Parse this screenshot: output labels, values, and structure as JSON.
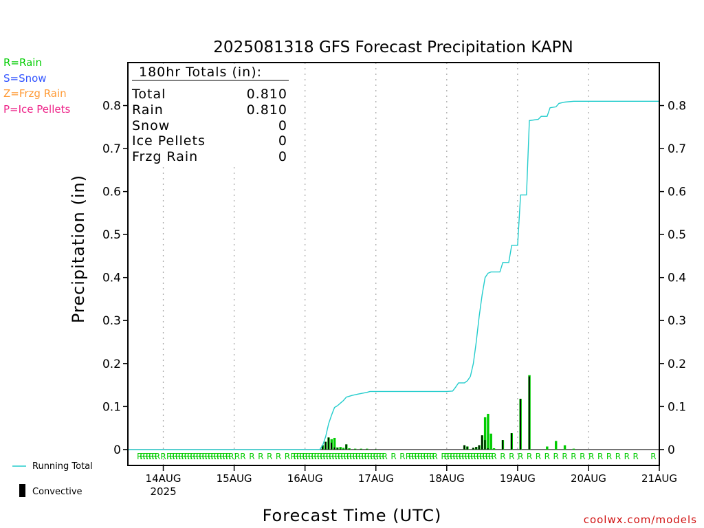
{
  "chart_data": {
    "type": "bar",
    "title": "2025081318 GFS Forecast Precipitation KAPN",
    "xlabel": "Forecast Time (UTC)",
    "ylabel": "Precipitation (in)",
    "credit": "coolwx.com/models",
    "ylim": [
      -0.037,
      0.9
    ],
    "y_ticks": [
      0,
      0.1,
      0.2,
      0.3,
      0.4,
      0.5,
      0.6,
      0.7,
      0.8
    ],
    "y_tick_labels": [
      "0",
      "0.1",
      "0.2",
      "0.3",
      "0.4",
      "0.5",
      "0.6",
      "0.7",
      "0.8"
    ],
    "xlim_hours": [
      -6,
      174
    ],
    "x_ticks": [
      {
        "hour": 6,
        "label": "14AUG"
      },
      {
        "hour": 30,
        "label": "15AUG"
      },
      {
        "hour": 54,
        "label": "16AUG"
      },
      {
        "hour": 78,
        "label": "17AUG"
      },
      {
        "hour": 102,
        "label": "18AUG"
      },
      {
        "hour": 126,
        "label": "19AUG"
      },
      {
        "hour": 150,
        "label": "20AUG"
      },
      {
        "hour": 174,
        "label": "21AUG"
      }
    ],
    "year_label": "2025",
    "gridlines": "dotted vertical at each day",
    "precip_type_legend": [
      {
        "text": "R=Rain",
        "color": "#00cc00"
      },
      {
        "text": "S=Snow",
        "color": "#3355ff"
      },
      {
        "text": "Z=Frzg Rain",
        "color": "#ff9933"
      },
      {
        "text": "P=Ice Pellets",
        "color": "#ee2288"
      }
    ],
    "series_legend": [
      {
        "name": "Running Total",
        "color": "#22cccc",
        "kind": "line"
      },
      {
        "name": "Convective",
        "color": "#000000",
        "kind": "bar"
      }
    ],
    "totals_box": {
      "heading": "180hr Totals (in):",
      "rows": [
        {
          "label": "Total",
          "value": "0.810"
        },
        {
          "label": "Rain",
          "value": "0.810"
        },
        {
          "label": "Snow",
          "value": "0"
        },
        {
          "label": "Ice Pellets",
          "value": "0"
        },
        {
          "label": "Frzg Rain",
          "value": "0"
        }
      ]
    },
    "precip_bars": [
      {
        "h": 60,
        "total": 0.01,
        "conv": 0.01
      },
      {
        "h": 61,
        "total": 0.018,
        "conv": 0.018
      },
      {
        "h": 62,
        "total": 0.028,
        "conv": 0.028
      },
      {
        "h": 63,
        "total": 0.024,
        "conv": 0.016
      },
      {
        "h": 64,
        "total": 0.027,
        "conv": 0.005
      },
      {
        "h": 65,
        "total": 0.005,
        "conv": 0.003
      },
      {
        "h": 66,
        "total": 0.006,
        "conv": 0.002
      },
      {
        "h": 67,
        "total": 0.004,
        "conv": 0.001
      },
      {
        "h": 68,
        "total": 0.012,
        "conv": 0.012
      },
      {
        "h": 69,
        "total": 0.003,
        "conv": 0.001
      },
      {
        "h": 71,
        "total": 0.002,
        "conv": 0.001
      },
      {
        "h": 73,
        "total": 0.002,
        "conv": 0.001
      },
      {
        "h": 75,
        "total": 0.002,
        "conv": 0.001
      },
      {
        "h": 78,
        "total": 0.001,
        "conv": 0.001
      },
      {
        "h": 108,
        "total": 0.01,
        "conv": 0.01
      },
      {
        "h": 109,
        "total": 0.007,
        "conv": 0.007
      },
      {
        "h": 111,
        "total": 0.004,
        "conv": 0.004
      },
      {
        "h": 112,
        "total": 0.006,
        "conv": 0.006
      },
      {
        "h": 113,
        "total": 0.01,
        "conv": 0.01
      },
      {
        "h": 114,
        "total": 0.033,
        "conv": 0.033
      },
      {
        "h": 115,
        "total": 0.075,
        "conv": 0.022
      },
      {
        "h": 116,
        "total": 0.083,
        "conv": 0.003
      },
      {
        "h": 117,
        "total": 0.037,
        "conv": 0
      },
      {
        "h": 118,
        "total": 0.003,
        "conv": 0
      },
      {
        "h": 121,
        "total": 0.022,
        "conv": 0.022
      },
      {
        "h": 124,
        "total": 0.038,
        "conv": 0.038
      },
      {
        "h": 127,
        "total": 0.118,
        "conv": 0.118
      },
      {
        "h": 130,
        "total": 0.173,
        "conv": 0.17
      },
      {
        "h": 136,
        "total": 0.007,
        "conv": 0
      },
      {
        "h": 139,
        "total": 0.02,
        "conv": 0
      },
      {
        "h": 142,
        "total": 0.01,
        "conv": 0
      },
      {
        "h": 145,
        "total": 0.002,
        "conv": 0
      }
    ],
    "running_total": [
      [
        -6,
        0
      ],
      [
        59,
        0
      ],
      [
        60,
        0.01
      ],
      [
        61,
        0.03
      ],
      [
        62,
        0.06
      ],
      [
        63,
        0.08
      ],
      [
        64,
        0.098
      ],
      [
        65,
        0.102
      ],
      [
        66,
        0.108
      ],
      [
        67,
        0.114
      ],
      [
        68,
        0.122
      ],
      [
        70,
        0.126
      ],
      [
        72,
        0.129
      ],
      [
        75,
        0.133
      ],
      [
        76,
        0.135
      ],
      [
        102,
        0.135
      ],
      [
        104,
        0.136
      ],
      [
        105,
        0.145
      ],
      [
        106,
        0.155
      ],
      [
        108,
        0.155
      ],
      [
        109,
        0.16
      ],
      [
        110,
        0.17
      ],
      [
        111,
        0.2
      ],
      [
        112,
        0.25
      ],
      [
        113,
        0.31
      ],
      [
        114,
        0.36
      ],
      [
        115,
        0.4
      ],
      [
        116,
        0.41
      ],
      [
        117,
        0.413
      ],
      [
        120,
        0.413
      ],
      [
        121,
        0.435
      ],
      [
        123,
        0.435
      ],
      [
        124,
        0.475
      ],
      [
        126,
        0.475
      ],
      [
        127,
        0.592
      ],
      [
        129,
        0.592
      ],
      [
        130,
        0.765
      ],
      [
        133,
        0.768
      ],
      [
        134,
        0.775
      ],
      [
        136,
        0.775
      ],
      [
        137,
        0.795
      ],
      [
        139,
        0.797
      ],
      [
        140,
        0.805
      ],
      [
        142,
        0.808
      ],
      [
        145,
        0.81
      ],
      [
        174,
        0.81
      ]
    ],
    "rain_markers_hours": [
      -2,
      -1,
      0,
      1,
      2,
      3,
      4,
      6,
      8,
      9,
      10,
      11,
      12,
      13,
      14,
      15,
      16,
      17,
      18,
      19,
      20,
      21,
      22,
      23,
      24,
      25,
      26,
      27,
      28,
      29,
      31,
      33,
      36,
      39,
      42,
      45,
      48,
      50,
      51,
      52,
      53,
      54,
      55,
      56,
      57,
      58,
      59,
      60,
      61,
      62,
      63,
      64,
      65,
      66,
      67,
      68,
      69,
      70,
      71,
      72,
      73,
      74,
      75,
      76,
      77,
      78,
      79,
      80,
      81,
      84,
      87,
      89,
      90,
      91,
      92,
      93,
      94,
      95,
      96,
      97,
      98,
      101,
      102,
      103,
      104,
      105,
      106,
      107,
      108,
      109,
      110,
      111,
      112,
      113,
      114,
      115,
      116,
      117,
      118,
      121,
      124,
      127,
      130,
      133,
      136,
      139,
      142,
      145,
      148,
      151,
      154,
      157,
      160,
      163,
      166,
      172,
      175
    ],
    "rain_marker_label": "R"
  }
}
